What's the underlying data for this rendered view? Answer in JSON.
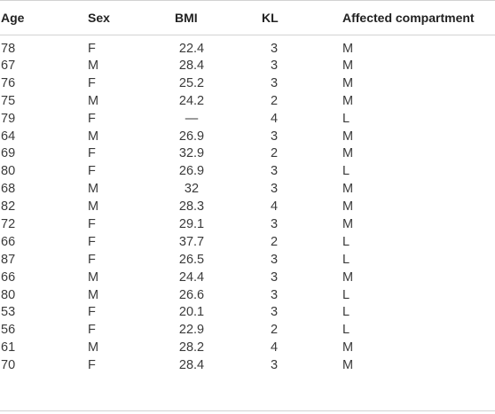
{
  "table": {
    "headers": {
      "age": "Age",
      "sex": "Sex",
      "bmi": "BMI",
      "kl": "KL",
      "compartment": "Affected compartment"
    },
    "rows": [
      {
        "age": "78",
        "sex": "F",
        "bmi": "22.4",
        "kl": "3",
        "compartment": "M"
      },
      {
        "age": "67",
        "sex": "M",
        "bmi": "28.4",
        "kl": "3",
        "compartment": "M"
      },
      {
        "age": "76",
        "sex": "F",
        "bmi": "25.2",
        "kl": "3",
        "compartment": "M"
      },
      {
        "age": "75",
        "sex": "M",
        "bmi": "24.2",
        "kl": "2",
        "compartment": "M"
      },
      {
        "age": "79",
        "sex": "F",
        "bmi": "—",
        "kl": "4",
        "compartment": "L"
      },
      {
        "age": "64",
        "sex": "M",
        "bmi": "26.9",
        "kl": "3",
        "compartment": "M"
      },
      {
        "age": "69",
        "sex": "F",
        "bmi": "32.9",
        "kl": "2",
        "compartment": "M"
      },
      {
        "age": "80",
        "sex": "F",
        "bmi": "26.9",
        "kl": "3",
        "compartment": "L"
      },
      {
        "age": "68",
        "sex": "M",
        "bmi": "32",
        "kl": "3",
        "compartment": "M"
      },
      {
        "age": "82",
        "sex": "M",
        "bmi": "28.3",
        "kl": "4",
        "compartment": "M"
      },
      {
        "age": "72",
        "sex": "F",
        "bmi": "29.1",
        "kl": "3",
        "compartment": "M"
      },
      {
        "age": "66",
        "sex": "F",
        "bmi": "37.7",
        "kl": "2",
        "compartment": "L"
      },
      {
        "age": "87",
        "sex": "F",
        "bmi": "26.5",
        "kl": "3",
        "compartment": "L"
      },
      {
        "age": "66",
        "sex": "M",
        "bmi": "24.4",
        "kl": "3",
        "compartment": "M"
      },
      {
        "age": "80",
        "sex": "M",
        "bmi": "26.6",
        "kl": "3",
        "compartment": "L"
      },
      {
        "age": "53",
        "sex": "F",
        "bmi": "20.1",
        "kl": "3",
        "compartment": "L"
      },
      {
        "age": "56",
        "sex": "F",
        "bmi": "22.9",
        "kl": "2",
        "compartment": "L"
      },
      {
        "age": "61",
        "sex": "M",
        "bmi": "28.2",
        "kl": "4",
        "compartment": "M"
      },
      {
        "age": "70",
        "sex": "F",
        "bmi": "28.4",
        "kl": "3",
        "compartment": "M"
      }
    ]
  }
}
